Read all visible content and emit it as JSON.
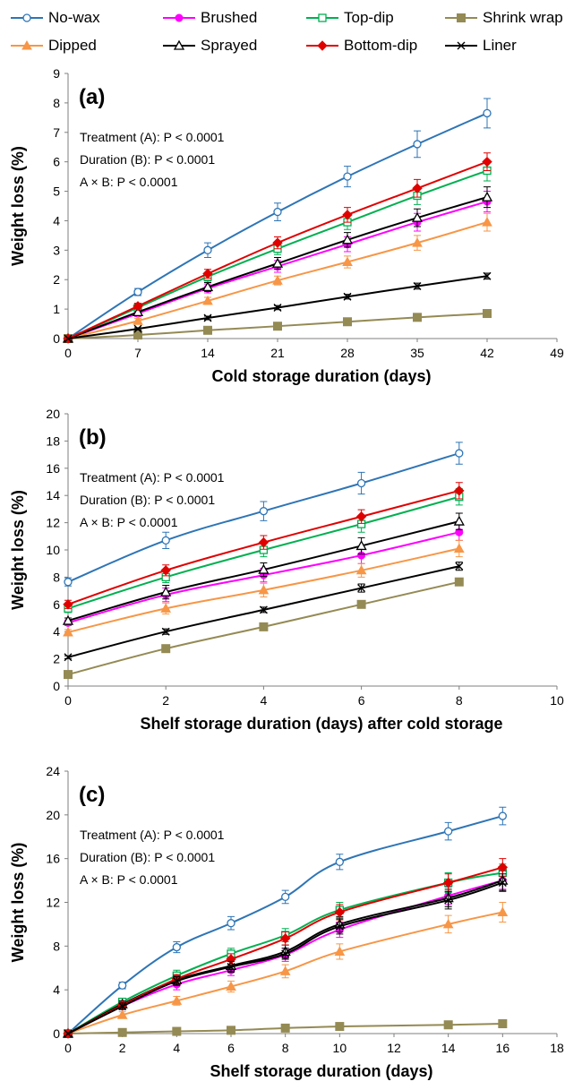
{
  "legend": [
    {
      "name": "No-wax",
      "color": "#2E75B6",
      "marker": "circle-open"
    },
    {
      "name": "Brushed",
      "color": "#FF00FF",
      "marker": "circle-filled"
    },
    {
      "name": "Top-dip",
      "color": "#00B050",
      "marker": "square-open"
    },
    {
      "name": "Shrink wrap",
      "color": "#948A54",
      "marker": "square-filled"
    },
    {
      "name": "Dipped",
      "color": "#F79646",
      "marker": "triangle-filled"
    },
    {
      "name": "Sprayed",
      "color": "#000000",
      "marker": "triangle-open"
    },
    {
      "name": "Bottom-dip",
      "color": "#E00000",
      "marker": "diamond-filled"
    },
    {
      "name": "Liner",
      "color": "#000000",
      "marker": "x"
    }
  ],
  "chart_data": [
    {
      "type": "line",
      "panel_label": "(a)",
      "xlabel": "Cold storage duration  (days)",
      "ylabel": "Weight loss (%)",
      "xlim": [
        0,
        49
      ],
      "ylim": [
        0,
        9
      ],
      "xticks": [
        0,
        7,
        14,
        21,
        28,
        35,
        42,
        49
      ],
      "yticks": [
        0,
        1,
        2,
        3,
        4,
        5,
        6,
        7,
        8,
        9
      ],
      "annotations": [
        "Treatment (A): P < 0.0001",
        "Duration (B): P < 0.0001",
        "A × B: P < 0.0001"
      ],
      "x": [
        0,
        7,
        14,
        21,
        28,
        35,
        42
      ],
      "series": [
        {
          "name": "No-wax",
          "values": [
            0,
            1.58,
            3.0,
            4.3,
            5.5,
            6.6,
            7.65
          ],
          "errors": [
            0,
            0.12,
            0.25,
            0.3,
            0.35,
            0.45,
            0.5
          ]
        },
        {
          "name": "Brushed",
          "values": [
            0,
            0.85,
            1.7,
            2.45,
            3.2,
            3.95,
            4.65
          ],
          "errors": [
            0,
            0.1,
            0.15,
            0.2,
            0.25,
            0.3,
            0.35
          ]
        },
        {
          "name": "Top-dip",
          "values": [
            0,
            1.05,
            2.1,
            3.05,
            3.95,
            4.85,
            5.7
          ],
          "errors": [
            0,
            0.1,
            0.15,
            0.2,
            0.25,
            0.3,
            0.35
          ]
        },
        {
          "name": "Shrink wrap",
          "values": [
            0,
            0.12,
            0.28,
            0.42,
            0.57,
            0.72,
            0.85
          ],
          "errors": [
            0,
            0.03,
            0.05,
            0.05,
            0.06,
            0.07,
            0.08
          ]
        },
        {
          "name": "Dipped",
          "values": [
            0,
            0.6,
            1.28,
            1.97,
            2.6,
            3.25,
            3.95
          ],
          "errors": [
            0,
            0.08,
            0.12,
            0.15,
            0.2,
            0.25,
            0.3
          ]
        },
        {
          "name": "Sprayed",
          "values": [
            0,
            0.9,
            1.75,
            2.55,
            3.35,
            4.1,
            4.8
          ],
          "errors": [
            0,
            0.1,
            0.15,
            0.2,
            0.25,
            0.3,
            0.35
          ]
        },
        {
          "name": "Bottom-dip",
          "values": [
            0,
            1.1,
            2.2,
            3.25,
            4.2,
            5.1,
            6.0
          ],
          "errors": [
            0,
            0.1,
            0.15,
            0.2,
            0.25,
            0.3,
            0.3
          ]
        },
        {
          "name": "Liner",
          "values": [
            0,
            0.33,
            0.7,
            1.05,
            1.42,
            1.78,
            2.12
          ],
          "errors": [
            0,
            0.04,
            0.06,
            0.07,
            0.08,
            0.1,
            0.1
          ]
        }
      ]
    },
    {
      "type": "line",
      "panel_label": "(b)",
      "xlabel": "Shelf storage duration  (days) after cold storage",
      "ylabel": "Weight loss (%)",
      "xlim": [
        0,
        10
      ],
      "ylim": [
        0,
        20
      ],
      "xticks": [
        0,
        2,
        4,
        6,
        8,
        10
      ],
      "yticks": [
        0,
        2,
        4,
        6,
        8,
        10,
        12,
        14,
        16,
        18,
        20
      ],
      "annotations": [
        "Treatment (A): P < 0.0001",
        "Duration (B): P < 0.0001",
        "A × B: P < 0.0001"
      ],
      "x": [
        0,
        2,
        4,
        6,
        8
      ],
      "series": [
        {
          "name": "No-wax",
          "values": [
            7.65,
            10.7,
            12.85,
            14.9,
            17.1
          ],
          "errors": [
            0.3,
            0.6,
            0.7,
            0.8,
            0.8
          ]
        },
        {
          "name": "Brushed",
          "values": [
            4.65,
            6.7,
            8.15,
            9.6,
            11.3
          ],
          "errors": [
            0.2,
            0.5,
            0.5,
            0.6,
            0.6
          ]
        },
        {
          "name": "Top-dip",
          "values": [
            5.7,
            8.0,
            10.0,
            11.9,
            13.9
          ],
          "errors": [
            0.3,
            0.4,
            0.5,
            0.6,
            0.6
          ]
        },
        {
          "name": "Shrink wrap",
          "values": [
            0.85,
            2.75,
            4.35,
            6.0,
            7.65
          ],
          "errors": [
            0.05,
            0.1,
            0.15,
            0.2,
            0.2
          ]
        },
        {
          "name": "Dipped",
          "values": [
            3.95,
            5.7,
            7.05,
            8.5,
            10.1
          ],
          "errors": [
            0.2,
            0.4,
            0.5,
            0.5,
            0.6
          ]
        },
        {
          "name": "Sprayed",
          "values": [
            4.8,
            6.9,
            8.55,
            10.3,
            12.1
          ],
          "errors": [
            0.2,
            0.5,
            0.5,
            0.6,
            0.6
          ]
        },
        {
          "name": "Bottom-dip",
          "values": [
            6.0,
            8.5,
            10.55,
            12.45,
            14.35
          ],
          "errors": [
            0.3,
            0.4,
            0.5,
            0.5,
            0.6
          ]
        },
        {
          "name": "Liner",
          "values": [
            2.12,
            4.0,
            5.6,
            7.2,
            8.8
          ],
          "errors": [
            0.1,
            0.2,
            0.2,
            0.3,
            0.3
          ]
        }
      ]
    },
    {
      "type": "line",
      "panel_label": "(c)",
      "xlabel": "Shelf storage duration  (days)",
      "ylabel": "Weight loss (%)",
      "xlim": [
        0,
        18
      ],
      "ylim": [
        0,
        24
      ],
      "xticks": [
        0,
        2,
        4,
        6,
        8,
        10,
        12,
        14,
        16,
        18
      ],
      "yticks": [
        0,
        4,
        8,
        12,
        16,
        20,
        24
      ],
      "annotations": [
        "Treatment (A): P < 0.0001",
        "Duration (B): P < 0.0001",
        "A × B: P < 0.0001"
      ],
      "x": [
        0,
        2,
        4,
        6,
        8,
        10,
        14,
        16
      ],
      "series": [
        {
          "name": "No-wax",
          "values": [
            0,
            4.4,
            7.9,
            10.1,
            12.5,
            15.7,
            18.5,
            19.9
          ],
          "errors": [
            0,
            0.3,
            0.5,
            0.6,
            0.6,
            0.7,
            0.8,
            0.8
          ]
        },
        {
          "name": "Brushed",
          "values": [
            0,
            2.5,
            4.5,
            5.8,
            7.2,
            9.5,
            12.6,
            14.0
          ],
          "errors": [
            0,
            0.3,
            0.5,
            0.5,
            0.6,
            0.7,
            0.8,
            0.8
          ]
        },
        {
          "name": "Top-dip",
          "values": [
            0,
            2.9,
            5.3,
            7.3,
            9.0,
            11.3,
            13.8,
            14.7
          ],
          "errors": [
            0,
            0.3,
            0.5,
            0.5,
            0.6,
            0.7,
            0.9,
            0.8
          ]
        },
        {
          "name": "Shrink wrap",
          "values": [
            0,
            0.1,
            0.2,
            0.3,
            0.5,
            0.65,
            0.8,
            0.9
          ],
          "errors": [
            0,
            0.05,
            0.05,
            0.1,
            0.1,
            0.1,
            0.1,
            0.1
          ]
        },
        {
          "name": "Dipped",
          "values": [
            0,
            1.7,
            3.0,
            4.3,
            5.7,
            7.5,
            10.0,
            11.1
          ],
          "errors": [
            0,
            0.3,
            0.4,
            0.5,
            0.6,
            0.7,
            0.8,
            0.9
          ]
        },
        {
          "name": "Sprayed",
          "values": [
            0,
            2.7,
            4.9,
            6.2,
            7.5,
            10.0,
            12.4,
            14.0
          ],
          "errors": [
            0,
            0.3,
            0.4,
            0.5,
            0.6,
            0.7,
            0.8,
            0.9
          ]
        },
        {
          "name": "Bottom-dip",
          "values": [
            0,
            2.6,
            5.0,
            6.8,
            8.7,
            11.1,
            13.8,
            15.2
          ],
          "errors": [
            0,
            0.3,
            0.4,
            0.5,
            0.6,
            0.7,
            0.8,
            0.8
          ]
        },
        {
          "name": "Liner",
          "values": [
            0,
            2.5,
            4.8,
            6.1,
            7.3,
            9.8,
            12.2,
            13.8
          ],
          "errors": [
            0,
            0.3,
            0.4,
            0.5,
            0.5,
            0.7,
            0.8,
            0.8
          ]
        }
      ]
    }
  ]
}
